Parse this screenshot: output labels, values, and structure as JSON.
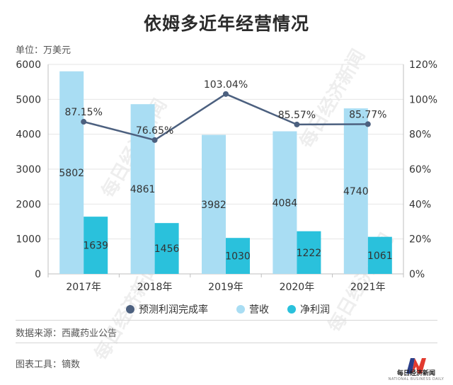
{
  "title": "依姆多近年经营情况",
  "unit_label": "单位：万美元",
  "source": "数据来源：西藏药业公告",
  "tool": "图表工具：镝数",
  "watermark": "每日经济新闻",
  "logo": {
    "name": "每日经济新闻",
    "sub": "NATIONAL BUSINESS DAILY"
  },
  "colors": {
    "revenue": "#a9ddf3",
    "profit": "#2ac1dc",
    "rate": "#4c607f",
    "axis_text": "#333333",
    "grid": "#e6e6e6"
  },
  "chart_data": {
    "type": "bar",
    "categories": [
      "2017年",
      "2018年",
      "2019年",
      "2020年",
      "2021年"
    ],
    "series": [
      {
        "name": "营收",
        "type": "bar",
        "axis": "left",
        "values": [
          5802,
          4861,
          3982,
          4084,
          4740
        ]
      },
      {
        "name": "净利润",
        "type": "bar",
        "axis": "left",
        "values": [
          1639,
          1456,
          1030,
          1222,
          1061
        ]
      },
      {
        "name": "预测利润完成率",
        "type": "line",
        "axis": "right",
        "values": [
          87.15,
          76.65,
          103.04,
          85.57,
          85.77
        ],
        "labels": [
          "87.15%",
          "76.65%",
          "103.04%",
          "85.57%",
          "85.77%"
        ]
      }
    ],
    "y_left": {
      "min": 0,
      "max": 6000,
      "ticks": [
        0,
        1000,
        2000,
        3000,
        4000,
        5000,
        6000
      ]
    },
    "y_right": {
      "min": 0,
      "max": 120,
      "ticks": [
        "0%",
        "20%",
        "40%",
        "60%",
        "80%",
        "100%",
        "120%"
      ]
    },
    "legend": [
      "预测利润完成率",
      "营收",
      "净利润"
    ],
    "legend_position": "bottom"
  }
}
